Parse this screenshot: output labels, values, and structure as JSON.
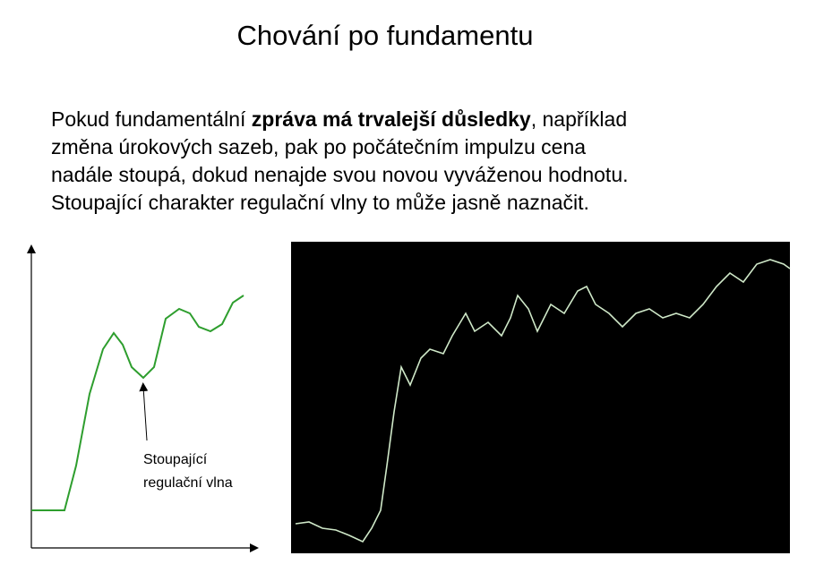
{
  "header": {
    "title": "Chování po fundamentu"
  },
  "paragraph": {
    "lines": [
      [
        "Pokud fundamentální ",
        "zpráva má trvalejší důsledky",
        ", například"
      ],
      "změna úrokových sazeb, pak po počátečním impulzu cena",
      "nadále stoupá, dokud nenajde svou novou vyváženou hodnotu.",
      "Stoupající charakter regulační vlny to může jasně naznačit."
    ]
  },
  "diagram": {
    "annotation": [
      "Stoupající",
      "regulační vlna"
    ]
  }
}
